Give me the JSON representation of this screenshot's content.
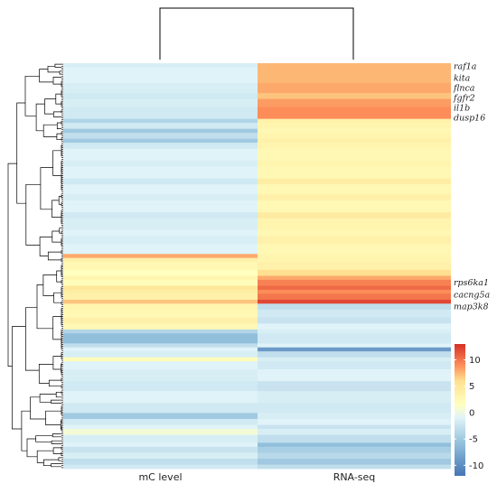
{
  "chart_data": {
    "type": "heatmap",
    "title": "",
    "columns": [
      "mC level",
      "RNA-seq"
    ],
    "row_blocks": [
      {
        "rows": 2,
        "values": [
          -1.5,
          7.5
        ]
      },
      {
        "rows": 8,
        "values": [
          -1.0,
          7.5
        ]
      },
      {
        "rows": 5,
        "values": [
          -1.5,
          8.0
        ]
      },
      {
        "rows": 3,
        "values": [
          -2.0,
          7.0
        ]
      },
      {
        "rows": 4,
        "values": [
          -1.5,
          8.5
        ]
      },
      {
        "rows": 6,
        "values": [
          -2.0,
          9.0
        ]
      },
      {
        "rows": 2,
        "values": [
          -4.0,
          3.5
        ]
      },
      {
        "rows": 3,
        "values": [
          -2.0,
          3.0
        ]
      },
      {
        "rows": 2,
        "values": [
          -5.0,
          2.5
        ]
      },
      {
        "rows": 3,
        "values": [
          -3.0,
          3.0
        ]
      },
      {
        "rows": 2,
        "values": [
          -5.0,
          3.5
        ]
      },
      {
        "rows": 3,
        "values": [
          -2.0,
          3.0
        ]
      },
      {
        "rows": 6,
        "values": [
          -1.0,
          2.5
        ]
      },
      {
        "rows": 3,
        "values": [
          -1.5,
          3.0
        ]
      },
      {
        "rows": 6,
        "values": [
          -1.0,
          2.5
        ]
      },
      {
        "rows": 3,
        "values": [
          -2.0,
          4.0
        ]
      },
      {
        "rows": 5,
        "values": [
          -1.0,
          2.5
        ]
      },
      {
        "rows": 3,
        "values": [
          -1.5,
          3.5
        ]
      },
      {
        "rows": 6,
        "values": [
          -1.0,
          2.5
        ]
      },
      {
        "rows": 3,
        "values": [
          -2.0,
          4.5
        ]
      },
      {
        "rows": 6,
        "values": [
          -1.5,
          3.0
        ]
      },
      {
        "rows": 3,
        "values": [
          -1.0,
          2.5
        ]
      },
      {
        "rows": 4,
        "values": [
          -1.5,
          3.5
        ]
      },
      {
        "rows": 5,
        "values": [
          -1.0,
          2.5
        ]
      },
      {
        "rows": 2,
        "values": [
          8.0,
          3.0
        ]
      },
      {
        "rows": 2,
        "values": [
          3.5,
          3.0
        ]
      },
      {
        "rows": 4,
        "values": [
          2.5,
          3.5
        ]
      },
      {
        "rows": 3,
        "values": [
          1.5,
          6.0
        ]
      },
      {
        "rows": 2,
        "values": [
          3.0,
          8.0
        ]
      },
      {
        "rows": 3,
        "values": [
          2.0,
          9.5
        ]
      },
      {
        "rows": 2,
        "values": [
          5.0,
          10.5
        ]
      },
      {
        "rows": 2,
        "values": [
          4.0,
          9.0
        ]
      },
      {
        "rows": 3,
        "values": [
          3.5,
          10.0
        ]
      },
      {
        "rows": 2,
        "values": [
          7.0,
          12.0
        ]
      },
      {
        "rows": 3,
        "values": [
          3.0,
          -3.0
        ]
      },
      {
        "rows": 4,
        "values": [
          2.5,
          -2.0
        ]
      },
      {
        "rows": 3,
        "values": [
          3.5,
          -2.5
        ]
      },
      {
        "rows": 3,
        "values": [
          2.5,
          -1.0
        ]
      },
      {
        "rows": 2,
        "values": [
          -4.0,
          -1.5
        ]
      },
      {
        "rows": 5,
        "values": [
          -6.0,
          -2.0
        ]
      },
      {
        "rows": 2,
        "values": [
          -3.0,
          -1.0
        ]
      },
      {
        "rows": 2,
        "values": [
          -1.0,
          -9.0
        ]
      },
      {
        "rows": 3,
        "values": [
          -1.5,
          -3.0
        ]
      },
      {
        "rows": 2,
        "values": [
          2.0,
          -1.5
        ]
      },
      {
        "rows": 4,
        "values": [
          -1.0,
          -2.0
        ]
      },
      {
        "rows": 6,
        "values": [
          -1.5,
          -1.0
        ]
      },
      {
        "rows": 5,
        "values": [
          -2.0,
          -2.5
        ]
      },
      {
        "rows": 6,
        "values": [
          -1.0,
          -1.5
        ]
      },
      {
        "rows": 5,
        "values": [
          -2.0,
          -2.0
        ]
      },
      {
        "rows": 3,
        "values": [
          -5.0,
          -1.5
        ]
      },
      {
        "rows": 3,
        "values": [
          -2.0,
          -1.0
        ]
      },
      {
        "rows": 2,
        "values": [
          -1.0,
          -2.5
        ]
      },
      {
        "rows": 3,
        "values": [
          0.5,
          -1.5
        ]
      },
      {
        "rows": 4,
        "values": [
          -1.5,
          -3.0
        ]
      },
      {
        "rows": 2,
        "values": [
          -1.0,
          -6.0
        ]
      },
      {
        "rows": 3,
        "values": [
          -2.5,
          -4.5
        ]
      },
      {
        "rows": 3,
        "values": [
          -1.5,
          -3.5
        ]
      },
      {
        "rows": 3,
        "values": [
          -3.0,
          -5.0
        ]
      },
      {
        "rows": 2,
        "values": [
          -2.0,
          -3.0
        ]
      }
    ],
    "gene_labels": [
      {
        "row": 1,
        "text": "raf1a"
      },
      {
        "row": 7,
        "text": "kita"
      },
      {
        "row": 12,
        "text": "flnca"
      },
      {
        "row": 17,
        "text": "fgfr2"
      },
      {
        "row": 22,
        "text": "il1b"
      },
      {
        "row": 27,
        "text": "dusp16"
      },
      {
        "row": 110,
        "text": "rps6ka1"
      },
      {
        "row": 116,
        "text": "cacng5a"
      },
      {
        "row": 122,
        "text": "map3k8"
      }
    ],
    "color_scale": {
      "min": -12,
      "max": 13,
      "stops": [
        {
          "value": -12,
          "color": "#4575b4"
        },
        {
          "value": -6,
          "color": "#91bfdb"
        },
        {
          "value": -1,
          "color": "#e0f3f8"
        },
        {
          "value": 1.5,
          "color": "#ffffbf"
        },
        {
          "value": 6,
          "color": "#fee090"
        },
        {
          "value": 9,
          "color": "#fc8d59"
        },
        {
          "value": 13,
          "color": "#d73027"
        }
      ],
      "ticks": [
        10,
        5,
        0,
        -5,
        -10
      ]
    },
    "col_dendrogram": true,
    "row_dendrogram": true
  }
}
